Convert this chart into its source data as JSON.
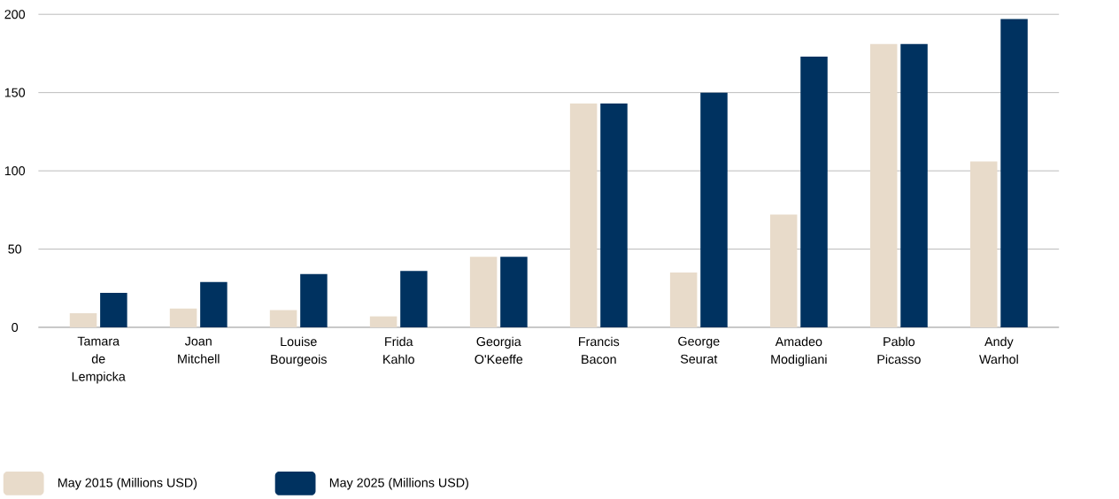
{
  "chart_data": {
    "type": "bar",
    "categories": [
      "Tamara de Lempicka",
      "Joan Mitchell",
      "Louise Bourgeois",
      "Frida Kahlo",
      "Georgia O'Keeffe",
      "Francis Bacon",
      "George Seurat",
      "Amadeo Modigliani",
      "Pablo Picasso",
      "Andy Warhol"
    ],
    "series": [
      {
        "name": "May 2015 (Millions USD)",
        "color": "#e8dbca",
        "values": [
          9,
          12,
          11,
          7,
          45,
          143,
          35,
          72,
          181,
          106
        ]
      },
      {
        "name": "May 2025 (Millions USD)",
        "color": "#003260",
        "values": [
          22,
          29,
          34,
          36,
          45,
          143,
          150,
          173,
          181,
          197
        ]
      }
    ],
    "ylim": [
      0,
      200
    ],
    "yticks": [
      0,
      50,
      100,
      150,
      200
    ],
    "grid": "y",
    "legend": "bottom left"
  }
}
